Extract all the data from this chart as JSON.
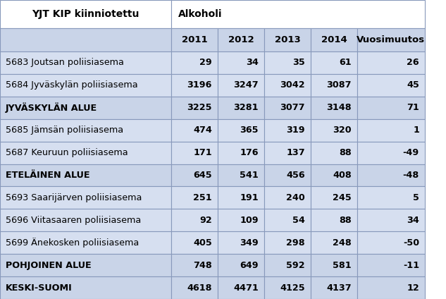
{
  "header1": "YJT KIP kiinniotettu",
  "header2": "Alkoholi",
  "col_headers": [
    "2011",
    "2012",
    "2013",
    "2014",
    "Vuosimuutos"
  ],
  "rows": [
    {
      "label": "5683 Joutsan poliisiasema",
      "values": [
        "29",
        "34",
        "35",
        "61",
        "26"
      ],
      "bold": false
    },
    {
      "label": "5684 Jyväskylän poliisiasema",
      "values": [
        "3196",
        "3247",
        "3042",
        "3087",
        "45"
      ],
      "bold": false
    },
    {
      "label": "JYVÄSKYLÄN ALUE",
      "values": [
        "3225",
        "3281",
        "3077",
        "3148",
        "71"
      ],
      "bold": true
    },
    {
      "label": "5685 Jämsän poliisiasema",
      "values": [
        "474",
        "365",
        "319",
        "320",
        "1"
      ],
      "bold": false
    },
    {
      "label": "5687 Keuruun poliisiasema",
      "values": [
        "171",
        "176",
        "137",
        "88",
        "-49"
      ],
      "bold": false
    },
    {
      "label": "ETELÄINEN ALUE",
      "values": [
        "645",
        "541",
        "456",
        "408",
        "-48"
      ],
      "bold": true
    },
    {
      "label": "5693 Saarijärven poliisiasema",
      "values": [
        "251",
        "191",
        "240",
        "245",
        "5"
      ],
      "bold": false
    },
    {
      "label": "5696 Viitasaaren poliisiasema",
      "values": [
        "92",
        "109",
        "54",
        "88",
        "34"
      ],
      "bold": false
    },
    {
      "label": "5699 Änekosken poliisiasema",
      "values": [
        "405",
        "349",
        "298",
        "248",
        "-50"
      ],
      "bold": false
    },
    {
      "label": "POHJOINEN ALUE",
      "values": [
        "748",
        "649",
        "592",
        "581",
        "-11"
      ],
      "bold": true
    },
    {
      "label": "KESKI-SUOMI",
      "values": [
        "4618",
        "4471",
        "4125",
        "4137",
        "12"
      ],
      "bold": true
    }
  ],
  "bg_white": "#FFFFFF",
  "bg_light": "#C9D4E8",
  "bg_data_light": "#D6DFF0",
  "bg_data_white": "#E8EDF5",
  "border_color": "#8899BB",
  "text_color": "#000000",
  "figsize": [
    6.33,
    4.24
  ],
  "dpi": 100
}
